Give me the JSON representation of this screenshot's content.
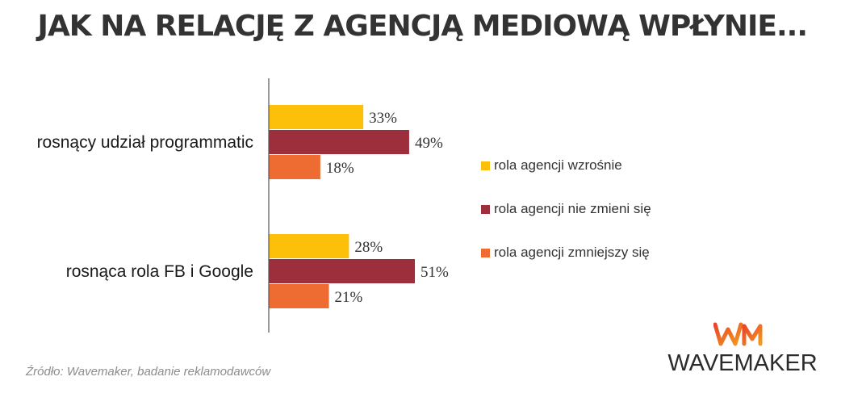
{
  "title": "JAK NA RELACJĘ Z AGENCJĄ MEDIOWĄ WPŁYNIE...",
  "source": "Źródło: Wavemaker, badanie reklamodawców",
  "logo": {
    "name": "wavemaker-logo",
    "text": "WAVEMAKER",
    "mark_colors": [
      "#e8452c",
      "#f39a1e"
    ]
  },
  "colors": {
    "yellow": "#fcc00a",
    "darkred": "#9d2f3c",
    "orange": "#ee6b31",
    "axis": "#555555"
  },
  "chart_data": {
    "type": "bar",
    "orientation": "horizontal",
    "categories": [
      "rosnący udział programmatic",
      "rosnąca rola FB i Google"
    ],
    "series": [
      {
        "name": "rola agencji wzrośnie",
        "values": [
          33,
          28
        ],
        "labels": [
          "33%",
          "28%"
        ],
        "color": "#fcc00a"
      },
      {
        "name": "rola agencji nie zmieni się",
        "values": [
          49,
          51
        ],
        "labels": [
          "49%",
          "51%"
        ],
        "color": "#9d2f3c"
      },
      {
        "name": "rola agencji zmniejszy się",
        "values": [
          18,
          21
        ],
        "labels": [
          "18%",
          "21%"
        ],
        "color": "#ee6b31"
      }
    ],
    "unit": "%",
    "xlim": [
      0,
      100
    ],
    "grid": false,
    "legend_position": "right"
  }
}
